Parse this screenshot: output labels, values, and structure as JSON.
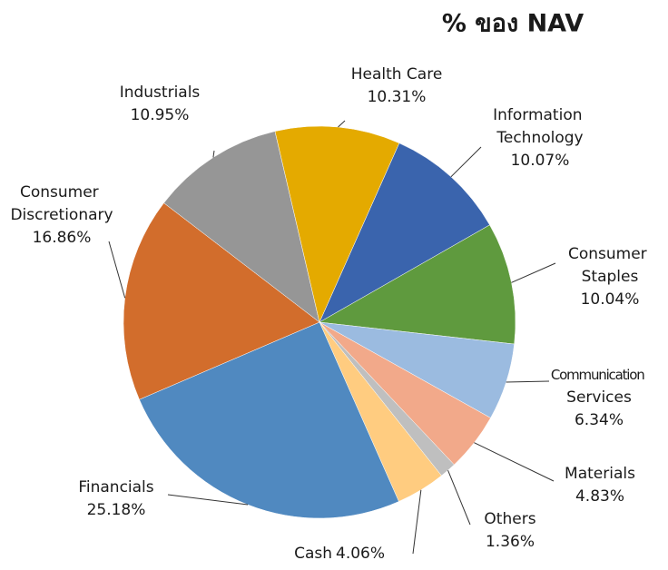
{
  "chart_data": {
    "type": "pie",
    "title": "% ของ NAV",
    "categories": [
      "Information Technology",
      "Consumer Staples",
      "Communication Services",
      "Materials",
      "Others",
      "Cash",
      "Financials",
      "Consumer Discretionary",
      "Industrials",
      "Health Care"
    ],
    "values": [
      10.07,
      10.04,
      6.34,
      4.83,
      1.36,
      4.06,
      25.18,
      16.86,
      10.95,
      10.31
    ],
    "value_labels": [
      "10.07%",
      "10.04%",
      "6.34%",
      "4.83%",
      "1.36%",
      "4.06%",
      "25.18%",
      "16.86%",
      "10.95%",
      "10.31%"
    ],
    "colors": [
      "#3a64ad",
      "#5f9a3e",
      "#9bbbe0",
      "#f2a98a",
      "#bfbfbf",
      "#ffcc80",
      "#5089c0",
      "#d26d2c",
      "#969696",
      "#e4aa00"
    ]
  }
}
